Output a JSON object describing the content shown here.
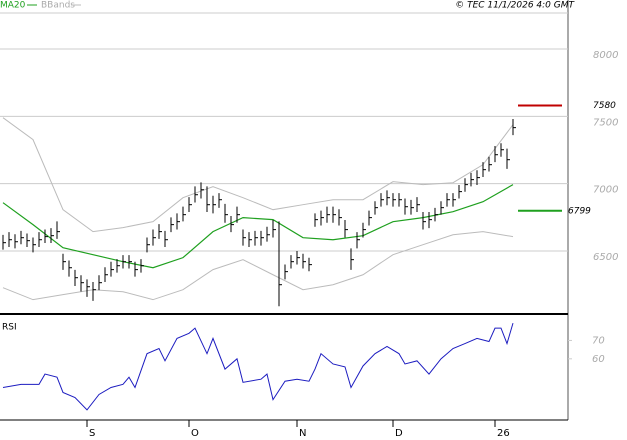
{
  "chart_data": [
    {
      "type": "ohlc",
      "copyright": "© TEC 11/1/2026 4:0 GMT",
      "color": "#000000",
      "grid": true,
      "categories": [
        null,
        null,
        null,
        null,
        null,
        null,
        null,
        null,
        null,
        null,
        null,
        null,
        null,
        null,
        "S",
        null,
        null,
        null,
        null,
        null,
        null,
        null,
        null,
        null,
        null,
        null,
        null,
        null,
        null,
        null,
        null,
        "O",
        null,
        null,
        null,
        null,
        null,
        null,
        null,
        null,
        null,
        null,
        null,
        null,
        null,
        null,
        null,
        null,
        null,
        "N",
        null,
        null,
        null,
        null,
        null,
        null,
        null,
        null,
        null,
        null,
        null,
        null,
        null,
        null,
        null,
        "D",
        null,
        null,
        null,
        null,
        null,
        null,
        null,
        null,
        null,
        null,
        null,
        null,
        null,
        null,
        null,
        null,
        "26",
        null,
        null,
        null
      ],
      "close": [
        6562,
        6584,
        6569,
        6599,
        6577,
        6547,
        6584,
        6607,
        6614,
        6644,
        6421,
        6376,
        6302,
        6265,
        6235,
        6213,
        6265,
        6324,
        6362,
        6391,
        6421,
        6421,
        6362,
        6391,
        6547,
        6599,
        6644,
        6584,
        6696,
        6718,
        6770,
        6844,
        6918,
        6955,
        6844,
        6844,
        6881,
        6770,
        6696,
        6770,
        6599,
        6584,
        6599,
        6599,
        6621,
        6659,
        6250,
        6347,
        6421,
        6451,
        6421,
        6399,
        6733,
        6748,
        6770,
        6770,
        6748,
        6659,
        6436,
        6584,
        6659,
        6748,
        6822,
        6881,
        6896,
        6881,
        6881,
        6829,
        6822,
        6844,
        6718,
        6733,
        6770,
        6822,
        6881,
        6881,
        6941,
        6993,
        7030,
        7045,
        7104,
        7141,
        7215,
        7252,
        7178,
        7416
      ],
      "high": [
        6620,
        6640,
        6625,
        6650,
        6630,
        6600,
        6640,
        6660,
        6670,
        6720,
        6480,
        6430,
        6360,
        6320,
        6290,
        6270,
        6320,
        6380,
        6420,
        6440,
        6470,
        6470,
        6420,
        6440,
        6600,
        6660,
        6700,
        6650,
        6750,
        6780,
        6830,
        6900,
        6980,
        7010,
        6980,
        6910,
        6930,
        6850,
        6760,
        6830,
        6660,
        6640,
        6650,
        6650,
        6680,
        6730,
        6720,
        6400,
        6470,
        6500,
        6480,
        6450,
        6780,
        6800,
        6830,
        6830,
        6810,
        6730,
        6520,
        6640,
        6710,
        6800,
        6870,
        6930,
        6950,
        6930,
        6930,
        6890,
        6880,
        6900,
        6790,
        6790,
        6820,
        6870,
        6930,
        6930,
        6990,
        7040,
        7080,
        7100,
        7160,
        7200,
        7280,
        7300,
        7260,
        7480
      ],
      "low": [
        6510,
        6530,
        6520,
        6550,
        6530,
        6490,
        6530,
        6560,
        6560,
        6590,
        6360,
        6310,
        6240,
        6200,
        6160,
        6130,
        6210,
        6270,
        6310,
        6340,
        6370,
        6370,
        6310,
        6340,
        6490,
        6540,
        6590,
        6530,
        6640,
        6660,
        6720,
        6790,
        6860,
        6890,
        6790,
        6780,
        6820,
        6710,
        6640,
        6710,
        6540,
        6530,
        6540,
        6540,
        6570,
        6600,
        6090,
        6290,
        6370,
        6400,
        6370,
        6350,
        6680,
        6690,
        6710,
        6710,
        6690,
        6600,
        6360,
        6520,
        6600,
        6690,
        6770,
        6830,
        6840,
        6830,
        6830,
        6770,
        6770,
        6790,
        6660,
        6670,
        6720,
        6770,
        6830,
        6830,
        6890,
        6940,
        6980,
        6990,
        7050,
        7090,
        7160,
        7200,
        7110,
        7360
      ],
      "indicators": [
        {
          "name": "MA20",
          "color": "#1fa01f",
          "x": [
            0,
            5,
            10,
            15,
            20,
            25,
            30,
            35,
            40,
            45,
            50,
            55,
            60,
            65,
            70,
            75,
            80,
            85
          ],
          "values": [
            6859,
            6696,
            6525,
            6473,
            6421,
            6376,
            6451,
            6644,
            6748,
            6733,
            6599,
            6584,
            6614,
            6718,
            6748,
            6792,
            6866,
            6993
          ]
        },
        {
          "name": "BBands",
          "color": "#bbbbbb",
          "x": [
            0,
            5,
            10,
            15,
            20,
            25,
            30,
            35,
            40,
            45,
            50,
            55,
            60,
            65,
            70,
            75,
            80,
            85
          ],
          "upper": [
            7490,
            7327,
            6807,
            6644,
            6674,
            6718,
            6896,
            6978,
            6896,
            6807,
            6844,
            6881,
            6881,
            7015,
            6993,
            7007,
            7141,
            7438
          ],
          "lower": [
            6228,
            6139,
            6176,
            6213,
            6198,
            6139,
            6213,
            6362,
            6436,
            6324,
            6213,
            6250,
            6324,
            6473,
            6547,
            6621,
            6644,
            6607
          ]
        }
      ],
      "levels": [
        {
          "value": 7580,
          "color": "#c00000"
        },
        {
          "value": 6799,
          "color": "#1fa01f"
        }
      ],
      "ylim": [
        6040,
        8267
      ],
      "yticks": [
        8000,
        7500,
        7000,
        6500
      ]
    },
    {
      "type": "line",
      "title": "RSI",
      "color": "#1c1cc0",
      "x": [
        0,
        3,
        6,
        7,
        9,
        10,
        12,
        14,
        16,
        18,
        20,
        21,
        22,
        24,
        26,
        27,
        29,
        31,
        32,
        34,
        35,
        37,
        39,
        40,
        43,
        44,
        45,
        47,
        49,
        51,
        52,
        53,
        55,
        57,
        58,
        60,
        62,
        64,
        66,
        67,
        69,
        71,
        73,
        75,
        77,
        79,
        81,
        82,
        83,
        84,
        85
      ],
      "values": [
        44.4,
        46.1,
        46.1,
        51.7,
        50,
        41.7,
        38.9,
        32.2,
        40.6,
        44.4,
        46.1,
        50,
        44.4,
        62.8,
        65.6,
        58.9,
        71.1,
        73.9,
        76.7,
        62.8,
        71.1,
        54.4,
        60,
        47.2,
        48.9,
        51.7,
        37.8,
        47.8,
        48.9,
        47.8,
        54.4,
        62.8,
        57.2,
        55.6,
        44.4,
        56.1,
        62.8,
        66.7,
        62.8,
        57.2,
        58.9,
        51.7,
        60,
        65.6,
        68.3,
        71.1,
        69.4,
        76.7,
        76.7,
        68.3,
        79.4
      ],
      "ylim": [
        26.7,
        83.3
      ],
      "yticks": [
        70,
        60
      ]
    }
  ]
}
